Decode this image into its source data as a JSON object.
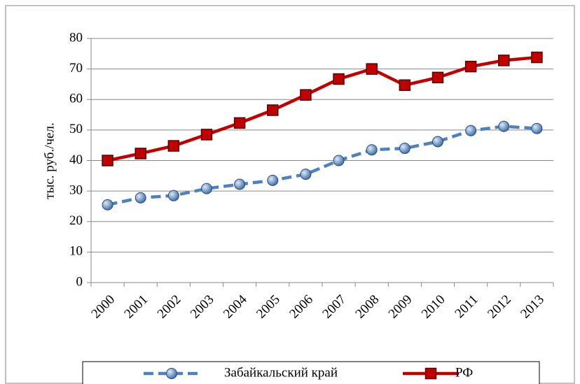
{
  "chart_data": {
    "type": "line",
    "y_label": "тыс. руб./чел.",
    "categories": [
      "2000",
      "2001",
      "2002",
      "2003",
      "2004",
      "2005",
      "2006",
      "2007",
      "2008",
      "2009",
      "2010",
      "2011",
      "2012",
      "2013"
    ],
    "series": [
      {
        "name": "Забайкальский край",
        "color": "#4f81bd",
        "marker": "circle",
        "dashed": true,
        "values": [
          25.5,
          27.8,
          28.5,
          30.8,
          32.2,
          33.5,
          35.5,
          40.0,
          43.5,
          44.0,
          46.2,
          49.8,
          51.2,
          50.5
        ]
      },
      {
        "name": "РФ",
        "color": "#c00000",
        "marker": "square",
        "dashed": false,
        "values": [
          40.0,
          42.3,
          44.8,
          48.5,
          52.3,
          56.5,
          61.5,
          66.7,
          70.0,
          64.7,
          67.2,
          70.8,
          72.8,
          73.8
        ]
      }
    ],
    "ylim": [
      0,
      80
    ],
    "yticks": [
      0,
      10,
      20,
      30,
      40,
      50,
      60,
      70,
      80
    ],
    "grid": true,
    "legend": "bottom"
  }
}
